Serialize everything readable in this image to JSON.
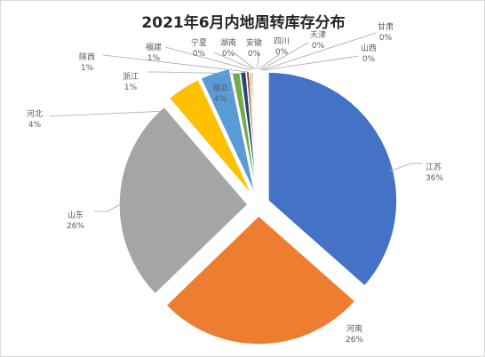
{
  "chart_data": {
    "type": "pie",
    "title": "2021年6月内地周转库存分布",
    "slices": [
      {
        "name": "江苏",
        "value": 36,
        "label": "36%",
        "color": "#4472c4"
      },
      {
        "name": "河南",
        "value": 26,
        "label": "26%",
        "color": "#ed7d31"
      },
      {
        "name": "山东",
        "value": 26,
        "label": "26%",
        "color": "#a5a5a5"
      },
      {
        "name": "河北",
        "value": 4,
        "label": "4%",
        "color": "#ffc000"
      },
      {
        "name": "湖北",
        "value": 4,
        "label": "4%",
        "color": "#5b9bd5"
      },
      {
        "name": "浙江",
        "value": 1,
        "label": "1%",
        "color": "#70ad47"
      },
      {
        "name": "陕西",
        "value": 1,
        "label": "1%",
        "color": "#264478"
      },
      {
        "name": "福建",
        "value": 1,
        "label": "1%",
        "color": "#9e480e"
      },
      {
        "name": "宁夏",
        "value": 0,
        "label": "0%",
        "color": "#636363"
      },
      {
        "name": "湖南",
        "value": 0,
        "label": "0%",
        "color": "#997300"
      },
      {
        "name": "安徽",
        "value": 0,
        "label": "0%",
        "color": "#255e91"
      },
      {
        "name": "四川",
        "value": 0,
        "label": "0%",
        "color": "#43682b"
      },
      {
        "name": "天津",
        "value": 0,
        "label": "0%",
        "color": "#698ed0"
      },
      {
        "name": "甘肃",
        "value": 0,
        "label": "0%",
        "color": "#f1975a"
      },
      {
        "name": "山西",
        "value": 0,
        "label": "0%",
        "color": "#b7b7b7"
      }
    ]
  }
}
